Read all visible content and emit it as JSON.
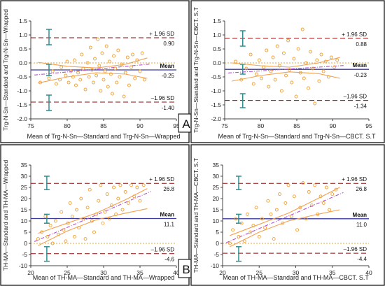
{
  "chart_data": [
    {
      "type": "scatter",
      "panel_label": "A",
      "xlabel": "Mean of Trg-N-Sn—Standard and Trg-N-Sn—Wrapped",
      "ylabel": "Trg-N-Sn—Standard and Trg-N-Sn—Wrapped",
      "xlim": [
        75,
        95
      ],
      "ylim": [
        -2.0,
        1.5
      ],
      "xticks": [
        "75",
        "80",
        "85",
        "90",
        "95"
      ],
      "yticks": [
        "-2.0",
        "-1.5",
        "-1.0",
        "-0.5",
        "0.0",
        "0.5",
        "1.0",
        "1.5"
      ],
      "lines": {
        "upper_label": "+ 1.96 SD",
        "upper": 0.9,
        "upper_text": "0.90",
        "mean_label": "Mean",
        "mean": -0.25,
        "mean_text": "-0.25",
        "lower_label": "–1.96 SD",
        "lower": -1.4,
        "lower_text": "-1.40",
        "zero": 0.0
      },
      "regression": {
        "y_at_xmin": -0.42,
        "y_at_xmax": -0.05
      },
      "ci_upper": [
        [
          76,
          0.02
        ],
        [
          80,
          -0.12
        ],
        [
          84,
          -0.18
        ],
        [
          88,
          -0.05
        ],
        [
          91,
          0.18
        ]
      ],
      "ci_lower": [
        [
          76,
          -0.72
        ],
        [
          80,
          -0.5
        ],
        [
          84,
          -0.35
        ],
        [
          88,
          -0.4
        ],
        [
          91,
          -0.55
        ]
      ],
      "ci_bars": {
        "x": 77.5,
        "upper": [
          0.65,
          1.2
        ],
        "mean": [
          -0.45,
          -0.05
        ],
        "lower": [
          -1.7,
          -1.15
        ]
      },
      "points": [
        [
          76.3,
          -0.7
        ],
        [
          77.5,
          -0.55
        ],
        [
          78,
          -0.3
        ],
        [
          78.5,
          -0.75
        ],
        [
          79,
          -0.6
        ],
        [
          79.2,
          -0.15
        ],
        [
          79.8,
          -0.45
        ],
        [
          80,
          0.05
        ],
        [
          80.2,
          -0.7
        ],
        [
          80.5,
          -0.3
        ],
        [
          80.8,
          -0.5
        ],
        [
          81,
          0.1
        ],
        [
          81.2,
          -0.8
        ],
        [
          81.5,
          -0.35
        ],
        [
          81.8,
          -0.6
        ],
        [
          82,
          0.3
        ],
        [
          82.2,
          -0.2
        ],
        [
          82.5,
          -0.95
        ],
        [
          82.8,
          0.0
        ],
        [
          83,
          -0.5
        ],
        [
          83.2,
          0.55
        ],
        [
          83.4,
          -0.25
        ],
        [
          83.6,
          -0.7
        ],
        [
          83.8,
          0.15
        ],
        [
          84,
          -0.45
        ],
        [
          84.2,
          0.85
        ],
        [
          84.4,
          -0.1
        ],
        [
          84.6,
          -1.0
        ],
        [
          84.8,
          0.35
        ],
        [
          85,
          -0.6
        ],
        [
          85.2,
          -0.3
        ],
        [
          85.4,
          0.6
        ],
        [
          85.6,
          -0.85
        ],
        [
          85.8,
          0.05
        ],
        [
          86,
          -0.4
        ],
        [
          86.2,
          -1.1
        ],
        [
          86.4,
          0.25
        ],
        [
          86.6,
          -0.2
        ],
        [
          86.8,
          -0.7
        ],
        [
          87,
          0.45
        ],
        [
          87.2,
          -0.5
        ],
        [
          87.5,
          -0.05
        ],
        [
          87.8,
          -1.2
        ],
        [
          88,
          -0.35
        ],
        [
          88.3,
          0.2
        ],
        [
          88.5,
          -0.8
        ],
        [
          88.8,
          -0.15
        ],
        [
          89,
          0.3
        ],
        [
          89.3,
          -0.55
        ],
        [
          89.6,
          0.1
        ],
        [
          90,
          -0.3
        ],
        [
          90.3,
          0.35
        ],
        [
          90.6,
          -0.6
        ]
      ]
    },
    {
      "type": "scatter",
      "panel_label": "",
      "xlabel": "Mean of Trg-N-Sn—Standard and Trg-N-Sn—CBCT. S.T",
      "ylabel": "Trg-N-Sn—Standard and Trg-N-Sn—CBCT. S.T",
      "xlim": [
        75,
        95
      ],
      "ylim": [
        -2.0,
        1.5
      ],
      "xticks": [
        "75",
        "80",
        "85",
        "90",
        "95"
      ],
      "yticks": [
        "-2.0",
        "-1.5",
        "-1.0",
        "-0.5",
        "0.0",
        "0.5",
        "1.0",
        "1.5"
      ],
      "lines": {
        "upper_label": "+ 1.96 SD",
        "upper": 0.88,
        "upper_text": "0.88",
        "mean_label": "Mean",
        "mean": -0.23,
        "mean_text": "-0.23",
        "lower_label": "–1.96 SD",
        "lower": -1.34,
        "lower_text": "-1.34",
        "zero": 0.0
      },
      "regression": {
        "y_at_xmin": -0.35,
        "y_at_xmax": -0.1
      },
      "ci_upper": [
        [
          76,
          0.0
        ],
        [
          80,
          -0.1
        ],
        [
          84,
          -0.15
        ],
        [
          88,
          0.0
        ],
        [
          91,
          0.2
        ]
      ],
      "ci_lower": [
        [
          76,
          -0.65
        ],
        [
          80,
          -0.45
        ],
        [
          84,
          -0.32
        ],
        [
          88,
          -0.38
        ],
        [
          91,
          -0.55
        ]
      ],
      "ci_bars": {
        "x": 77.5,
        "upper": [
          0.6,
          1.15
        ],
        "mean": [
          -0.4,
          -0.05
        ],
        "lower": [
          -1.6,
          -1.1
        ]
      },
      "points": [
        [
          76.5,
          0.05
        ],
        [
          77.3,
          -0.6
        ],
        [
          78,
          -0.2
        ],
        [
          78.6,
          0.3
        ],
        [
          79,
          -0.75
        ],
        [
          79.4,
          -0.4
        ],
        [
          79.8,
          0.1
        ],
        [
          80.1,
          -0.55
        ],
        [
          80.4,
          -0.15
        ],
        [
          80.8,
          0.45
        ],
        [
          81.1,
          -0.85
        ],
        [
          81.4,
          -0.3
        ],
        [
          81.7,
          0.2
        ],
        [
          82,
          -0.6
        ],
        [
          82.3,
          0.6
        ],
        [
          82.6,
          -0.1
        ],
        [
          82.9,
          -1.0
        ],
        [
          83.2,
          0.35
        ],
        [
          83.5,
          -0.45
        ],
        [
          83.8,
          0.8
        ],
        [
          84,
          -0.25
        ],
        [
          84.3,
          -0.7
        ],
        [
          84.6,
          0.15
        ],
        [
          84.9,
          -1.2
        ],
        [
          85.2,
          0.5
        ],
        [
          85.5,
          -0.35
        ],
        [
          85.8,
          1.2
        ],
        [
          86,
          -0.55
        ],
        [
          86.3,
          0.0
        ],
        [
          86.6,
          -0.9
        ],
        [
          86.9,
          0.4
        ],
        [
          87.2,
          -0.2
        ],
        [
          87.5,
          -1.45
        ],
        [
          87.8,
          0.1
        ],
        [
          88.1,
          -0.65
        ],
        [
          88.4,
          0.3
        ],
        [
          88.7,
          -0.3
        ],
        [
          89,
          0.05
        ],
        [
          89.4,
          -0.5
        ],
        [
          89.8,
          0.2
        ],
        [
          90.2,
          -0.15
        ],
        [
          90.6,
          0.1
        ]
      ]
    },
    {
      "type": "scatter",
      "panel_label": "B",
      "xlabel": "Mean of TH-MA—Standard and TH-MA—Wrapped",
      "ylabel": "TH-MA—Standard and TH-MA—Wrapped",
      "xlim": [
        20,
        40
      ],
      "ylim": [
        -10,
        35
      ],
      "xticks": [
        "20",
        "25",
        "30",
        "35",
        "40"
      ],
      "yticks": [
        "-10",
        "-5",
        "0",
        "5",
        "10",
        "15",
        "20",
        "25",
        "30",
        "35"
      ],
      "lines": {
        "upper_label": "+ 1.96 SD",
        "upper": 26.8,
        "upper_text": "26.8",
        "mean_label": "Mean",
        "mean": 11.1,
        "mean_text": "11.1",
        "lower_label": "–1.96 SD",
        "lower": -4.6,
        "lower_text": "-4.6",
        "zero": 0.0
      },
      "regression": {
        "y_at_xmin": 1.5,
        "y_at_xmax": 22.5
      },
      "regression_xrange": [
        21,
        36
      ],
      "ci_upper": [
        [
          21,
          4.5
        ],
        [
          25,
          9
        ],
        [
          29,
          13.5
        ],
        [
          33,
          19.5
        ],
        [
          36,
          24.5
        ]
      ],
      "ci_lower": [
        [
          21,
          -1
        ],
        [
          25,
          5.5
        ],
        [
          29,
          10.5
        ],
        [
          33,
          13.5
        ],
        [
          36,
          15.5
        ]
      ],
      "ci_bars": {
        "x": 22.2,
        "upper": [
          24,
          30
        ],
        "mean": [
          9,
          13
        ],
        "lower": [
          -8,
          -1.5
        ]
      },
      "points": [
        [
          21,
          2
        ],
        [
          21.5,
          5
        ],
        [
          22,
          12
        ],
        [
          22.3,
          3
        ],
        [
          22.7,
          8
        ],
        [
          23,
          0
        ],
        [
          23.4,
          10
        ],
        [
          23.8,
          4
        ],
        [
          24.2,
          14
        ],
        [
          24.5,
          6
        ],
        [
          24.8,
          1
        ],
        [
          25.1,
          9
        ],
        [
          25.4,
          18
        ],
        [
          25.7,
          12
        ],
        [
          26,
          3
        ],
        [
          26.3,
          15
        ],
        [
          26.6,
          7
        ],
        [
          26.9,
          20
        ],
        [
          27.2,
          11
        ],
        [
          27.5,
          2
        ],
        [
          27.8,
          16
        ],
        [
          28.1,
          24
        ],
        [
          28.4,
          10
        ],
        [
          28.7,
          5
        ],
        [
          29,
          13
        ],
        [
          29.3,
          19
        ],
        [
          29.6,
          26
        ],
        [
          29.9,
          9
        ],
        [
          30.2,
          14
        ],
        [
          30.5,
          22
        ],
        [
          30.8,
          11
        ],
        [
          31.1,
          17
        ],
        [
          31.4,
          25
        ],
        [
          31.7,
          13
        ],
        [
          32,
          20
        ],
        [
          32.3,
          26
        ],
        [
          32.6,
          15
        ],
        [
          33,
          23
        ],
        [
          33.4,
          18
        ],
        [
          33.8,
          26
        ],
        [
          34.2,
          21
        ],
        [
          34.6,
          25
        ],
        [
          35,
          19
        ],
        [
          35.5,
          26
        ]
      ]
    },
    {
      "type": "scatter",
      "panel_label": "",
      "xlabel": "Mean of TH-MA—Standard and TH-MA—CBCT. S.T",
      "ylabel": "TH-MA—Standard and TH-MA—CBCT. S.T",
      "xlim": [
        20,
        40
      ],
      "ylim": [
        -10,
        35
      ],
      "xticks": [
        "20",
        "25",
        "30",
        "35",
        "40"
      ],
      "yticks": [
        "-10",
        "-5",
        "0",
        "5",
        "10",
        "15",
        "20",
        "25",
        "30",
        "35"
      ],
      "lines": {
        "upper_label": "+ 1.96 SD",
        "upper": 26.8,
        "upper_text": "26.8",
        "mean_label": "Mean",
        "mean": 11.0,
        "mean_text": "11.0",
        "lower_label": "–1.96 SD",
        "lower": -4.4,
        "lower_text": "-4.4",
        "zero": 0.0
      },
      "regression": {
        "y_at_xmin": 1,
        "y_at_xmax": 22
      },
      "regression_xrange": [
        21,
        36
      ],
      "ci_upper": [
        [
          21,
          3.5
        ],
        [
          25,
          8.5
        ],
        [
          29,
          13.5
        ],
        [
          33,
          20
        ],
        [
          36,
          25
        ]
      ],
      "ci_lower": [
        [
          21,
          -1.5
        ],
        [
          25,
          5
        ],
        [
          29,
          10
        ],
        [
          33,
          13
        ],
        [
          36,
          15
        ]
      ],
      "ci_bars": {
        "x": 22.2,
        "upper": [
          24,
          30
        ],
        "mean": [
          9,
          13
        ],
        "lower": [
          -8,
          -1.5
        ]
      },
      "points": [
        [
          21,
          0
        ],
        [
          21.4,
          6
        ],
        [
          21.8,
          11
        ],
        [
          22.2,
          3
        ],
        [
          22.6,
          9
        ],
        [
          23,
          1
        ],
        [
          23.4,
          13
        ],
        [
          23.8,
          5
        ],
        [
          24.2,
          8
        ],
        [
          24.6,
          16
        ],
        [
          25,
          3
        ],
        [
          25.4,
          11
        ],
        [
          25.8,
          7
        ],
        [
          26.2,
          19
        ],
        [
          26.6,
          13
        ],
        [
          27,
          2
        ],
        [
          27.4,
          15
        ],
        [
          27.8,
          22
        ],
        [
          28.2,
          9
        ],
        [
          28.6,
          18
        ],
        [
          29,
          26
        ],
        [
          29.4,
          12
        ],
        [
          29.8,
          21
        ],
        [
          30.2,
          6
        ],
        [
          30.6,
          16
        ],
        [
          31,
          27
        ],
        [
          31.4,
          11
        ],
        [
          31.8,
          23
        ],
        [
          32.2,
          17
        ],
        [
          32.6,
          26
        ],
        [
          33,
          13
        ],
        [
          33.4,
          21
        ],
        [
          33.8,
          18
        ],
        [
          34.2,
          25
        ],
        [
          34.6,
          15
        ],
        [
          35,
          22
        ],
        [
          35.5,
          24
        ]
      ]
    }
  ]
}
